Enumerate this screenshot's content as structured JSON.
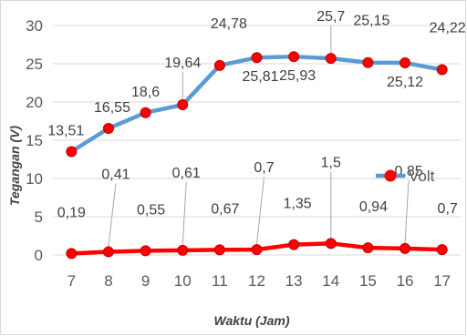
{
  "chart_data": {
    "type": "line",
    "title": "",
    "xlabel": "Waktu (Jam)",
    "ylabel": "Tegangan (V)",
    "ylim": [
      0,
      30
    ],
    "y_ticks": [
      "0",
      "5",
      "10",
      "15",
      "20",
      "25",
      "30"
    ],
    "categories": [
      "7",
      "8",
      "9",
      "10",
      "11",
      "12",
      "13",
      "14",
      "15",
      "16",
      "17"
    ],
    "grid": "horizontal",
    "legend_position": "right",
    "series": [
      {
        "name": "Volt",
        "line_color": "#5b9bd5",
        "marker_color": "#ff0000",
        "values": [
          13.51,
          16.55,
          18.6,
          19.64,
          24.78,
          25.81,
          25.93,
          25.7,
          25.15,
          25.12,
          24.22
        ],
        "labels": [
          "13,51",
          "16,55",
          "18,6",
          "19,64",
          "24,78",
          "25,81",
          "25,93",
          "25,7",
          "25,15",
          "25,12",
          "24,22"
        ]
      },
      {
        "name": "",
        "line_color": "#ff0000",
        "marker_color": "#ff0000",
        "values": [
          0.19,
          0.41,
          0.55,
          0.61,
          0.67,
          0.7,
          1.35,
          1.5,
          0.94,
          0.85,
          0.7
        ],
        "labels": [
          "0,19",
          "0,41",
          "0,55",
          "0,61",
          "0,67",
          "0,7",
          "1,35",
          "1,5",
          "0,94",
          "0,85",
          "0,7"
        ]
      }
    ]
  }
}
